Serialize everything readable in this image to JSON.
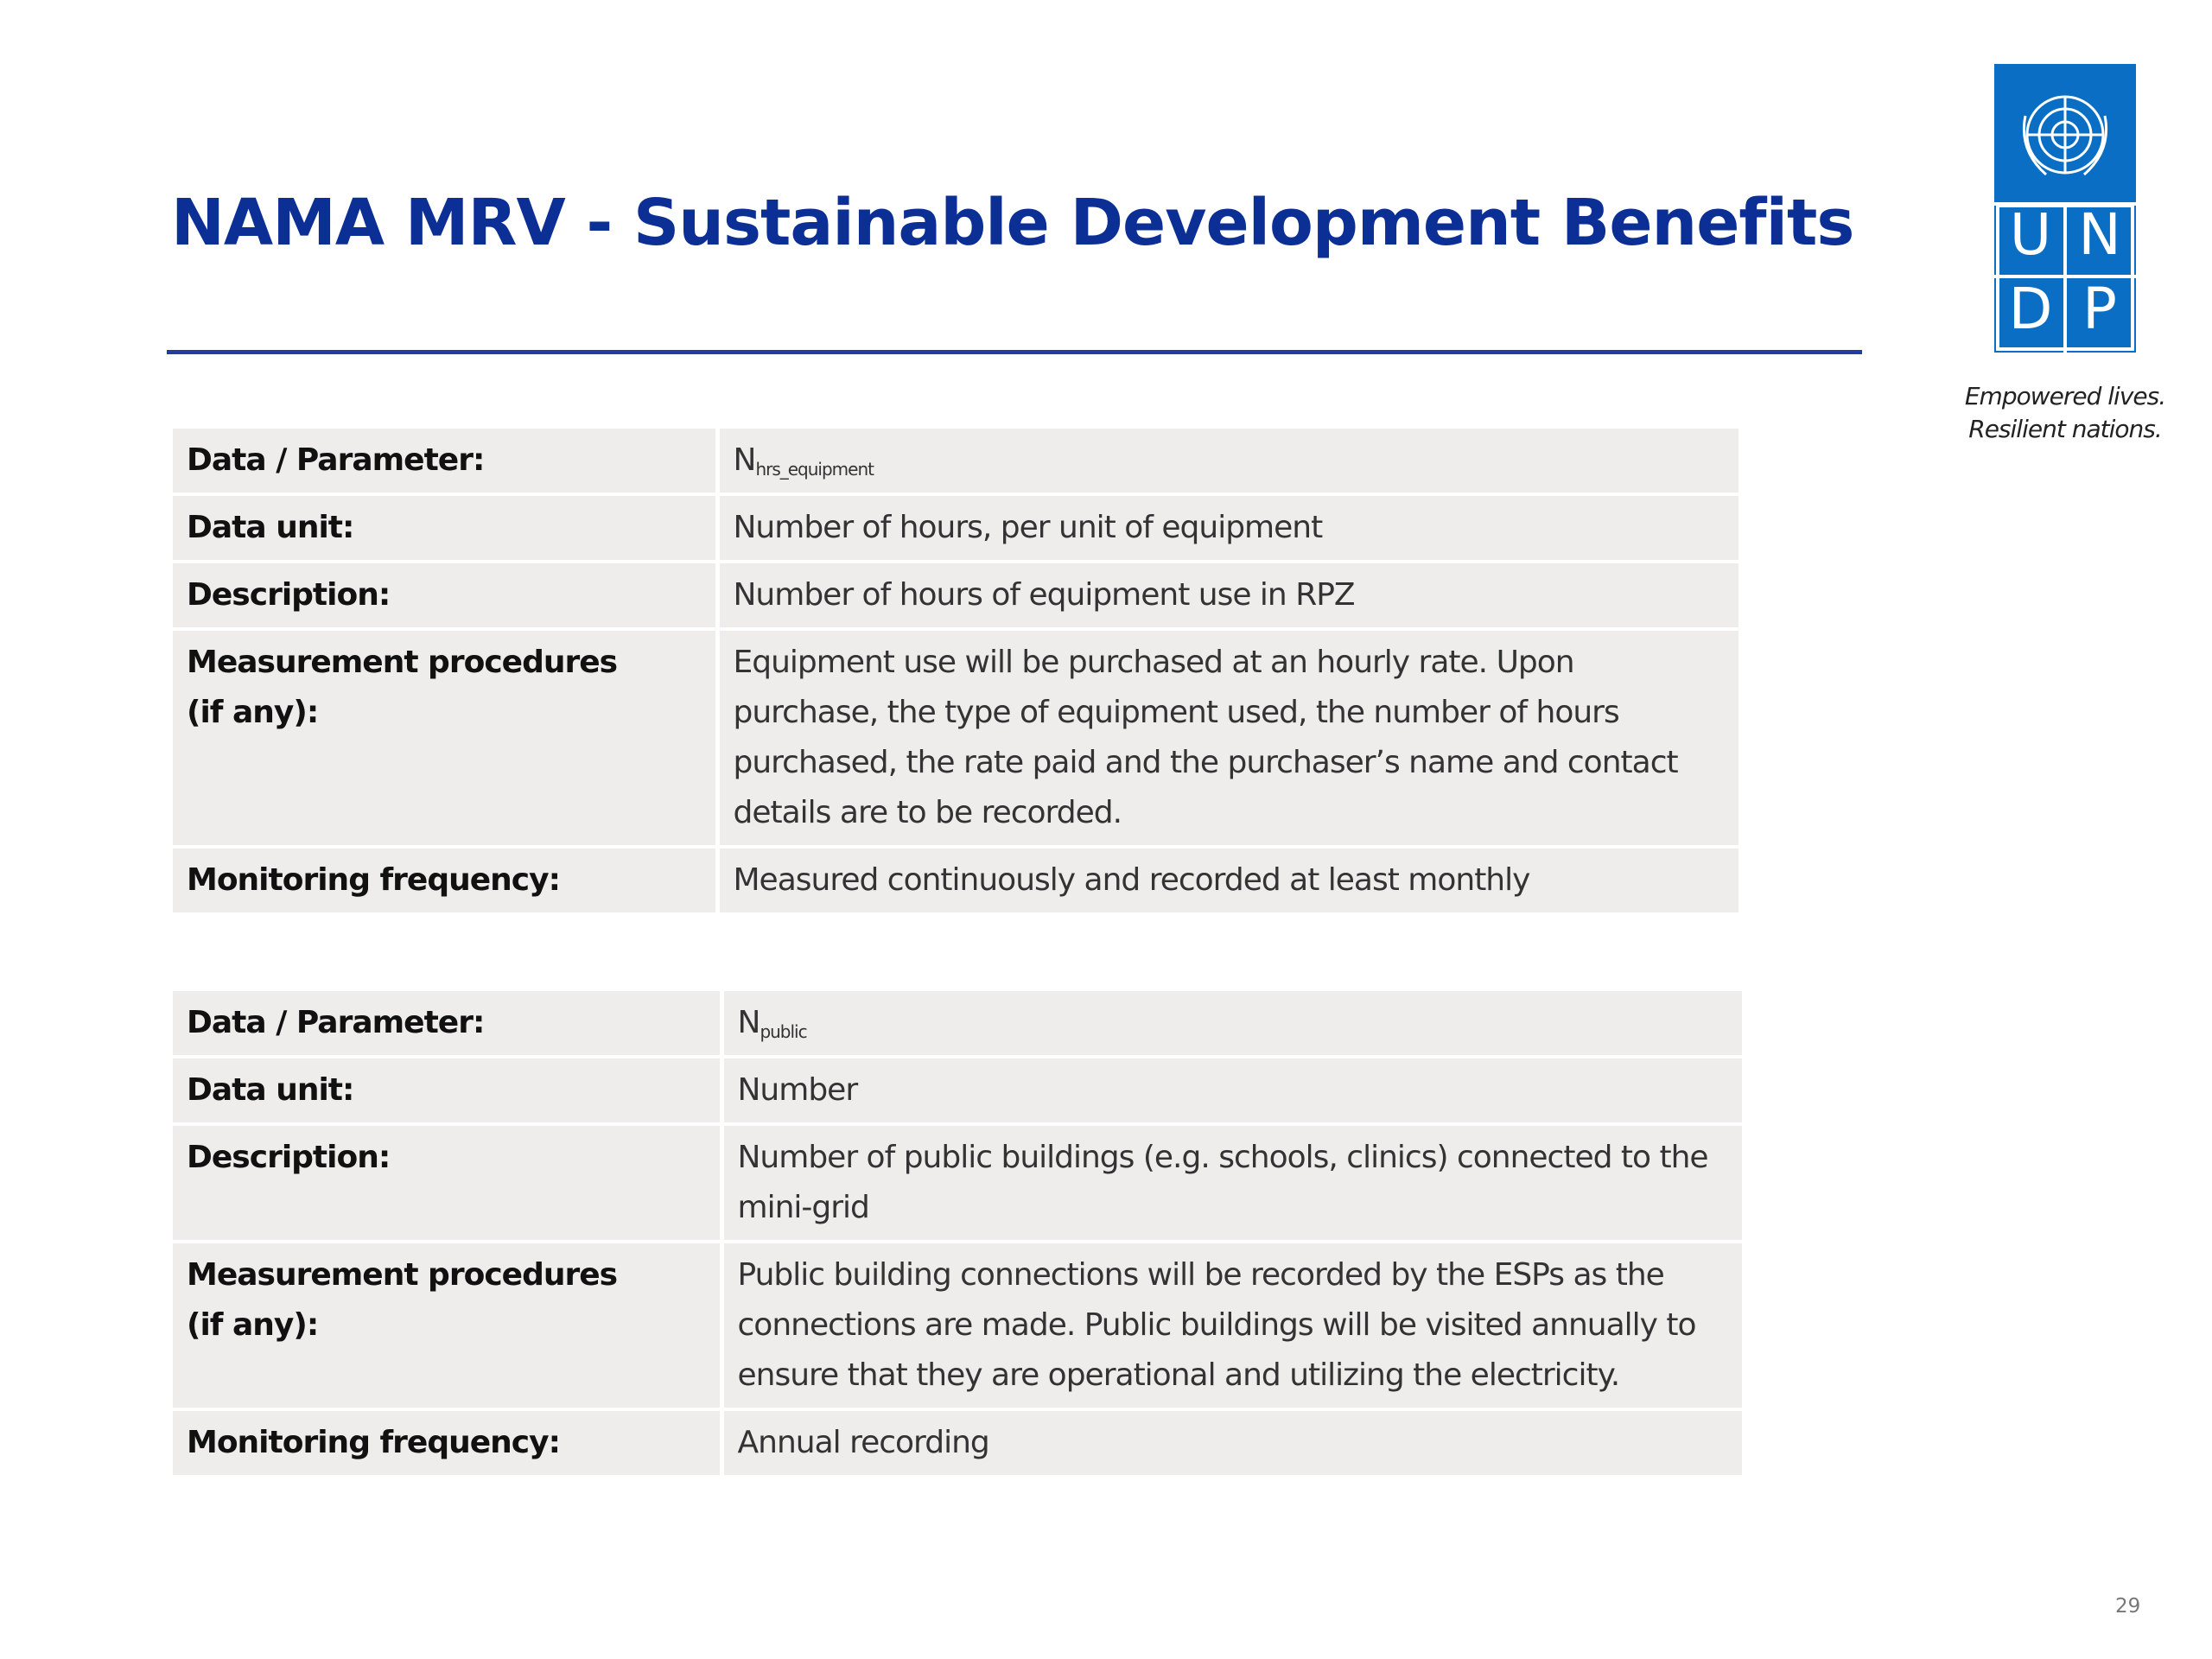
{
  "header": {
    "title": "NAMA MRV - Sustainable Development Benefits"
  },
  "logo": {
    "letters": [
      "U",
      "N",
      "D",
      "P"
    ],
    "tagline": [
      "Empowered lives.",
      "Resilient nations."
    ]
  },
  "tables": [
    {
      "rows": [
        {
          "label": [
            "Data / Parameter:"
          ],
          "value": {
            "main": "N",
            "sub": "hrs_equipment"
          }
        },
        {
          "label": [
            "Data unit:"
          ],
          "value": "Number of hours, per unit of equipment"
        },
        {
          "label": [
            "Description:"
          ],
          "value": "Number of hours of equipment use in RPZ"
        },
        {
          "label": [
            "Measurement procedures",
            "(if any):"
          ],
          "value": "Equipment use will be purchased at an hourly rate. Upon purchase, the type of equipment used, the number of hours purchased, the rate paid and the purchaser’s name and contact details are to be recorded."
        },
        {
          "label": [
            "Monitoring frequency:"
          ],
          "value": "Measured continuously and recorded at least monthly"
        }
      ]
    },
    {
      "rows": [
        {
          "label": [
            "Data / Parameter:"
          ],
          "value": {
            "main": "N",
            "sub": "public"
          }
        },
        {
          "label": [
            "Data unit:"
          ],
          "value": "Number"
        },
        {
          "label": [
            "Description:"
          ],
          "value": "Number of public buildings (e.g. schools, clinics) connected to the mini-grid"
        },
        {
          "label": [
            "Measurement procedures",
            "(if any):"
          ],
          "value": "Public building connections will be recorded by the ESPs as the connections are made. Public buildings will be visited annually to ensure that they are operational and utilizing the electricity."
        },
        {
          "label": [
            "Monitoring frequency:"
          ],
          "value": "Annual recording"
        }
      ]
    }
  ],
  "page_number": "29"
}
